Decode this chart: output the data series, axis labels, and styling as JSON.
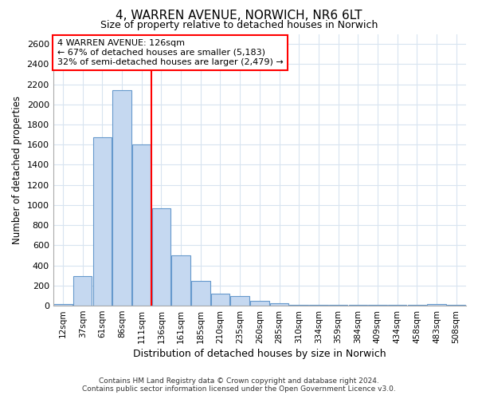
{
  "title1": "4, WARREN AVENUE, NORWICH, NR6 6LT",
  "title2": "Size of property relative to detached houses in Norwich",
  "xlabel": "Distribution of detached houses by size in Norwich",
  "ylabel": "Number of detached properties",
  "categories": [
    "12sqm",
    "37sqm",
    "61sqm",
    "86sqm",
    "111sqm",
    "136sqm",
    "161sqm",
    "185sqm",
    "210sqm",
    "235sqm",
    "260sqm",
    "285sqm",
    "310sqm",
    "334sqm",
    "359sqm",
    "384sqm",
    "409sqm",
    "434sqm",
    "458sqm",
    "483sqm",
    "508sqm"
  ],
  "values": [
    20,
    295,
    1670,
    2140,
    1600,
    970,
    500,
    250,
    120,
    95,
    45,
    25,
    8,
    8,
    8,
    8,
    8,
    8,
    5,
    20,
    5
  ],
  "bar_color": "#c5d8f0",
  "bar_edge_color": "#6699cc",
  "vline_x": 4.5,
  "annotation_text": "4 WARREN AVENUE: 126sqm\n← 67% of detached houses are smaller (5,183)\n32% of semi-detached houses are larger (2,479) →",
  "annotation_box_facecolor": "white",
  "annotation_box_edgecolor": "red",
  "vline_color": "red",
  "ylim": [
    0,
    2700
  ],
  "yticks": [
    0,
    200,
    400,
    600,
    800,
    1000,
    1200,
    1400,
    1600,
    1800,
    2000,
    2200,
    2400,
    2600
  ],
  "footnote": "Contains HM Land Registry data © Crown copyright and database right 2024.\nContains public sector information licensed under the Open Government Licence v3.0.",
  "bg_color": "#ffffff",
  "grid_color": "#d8e4f0"
}
